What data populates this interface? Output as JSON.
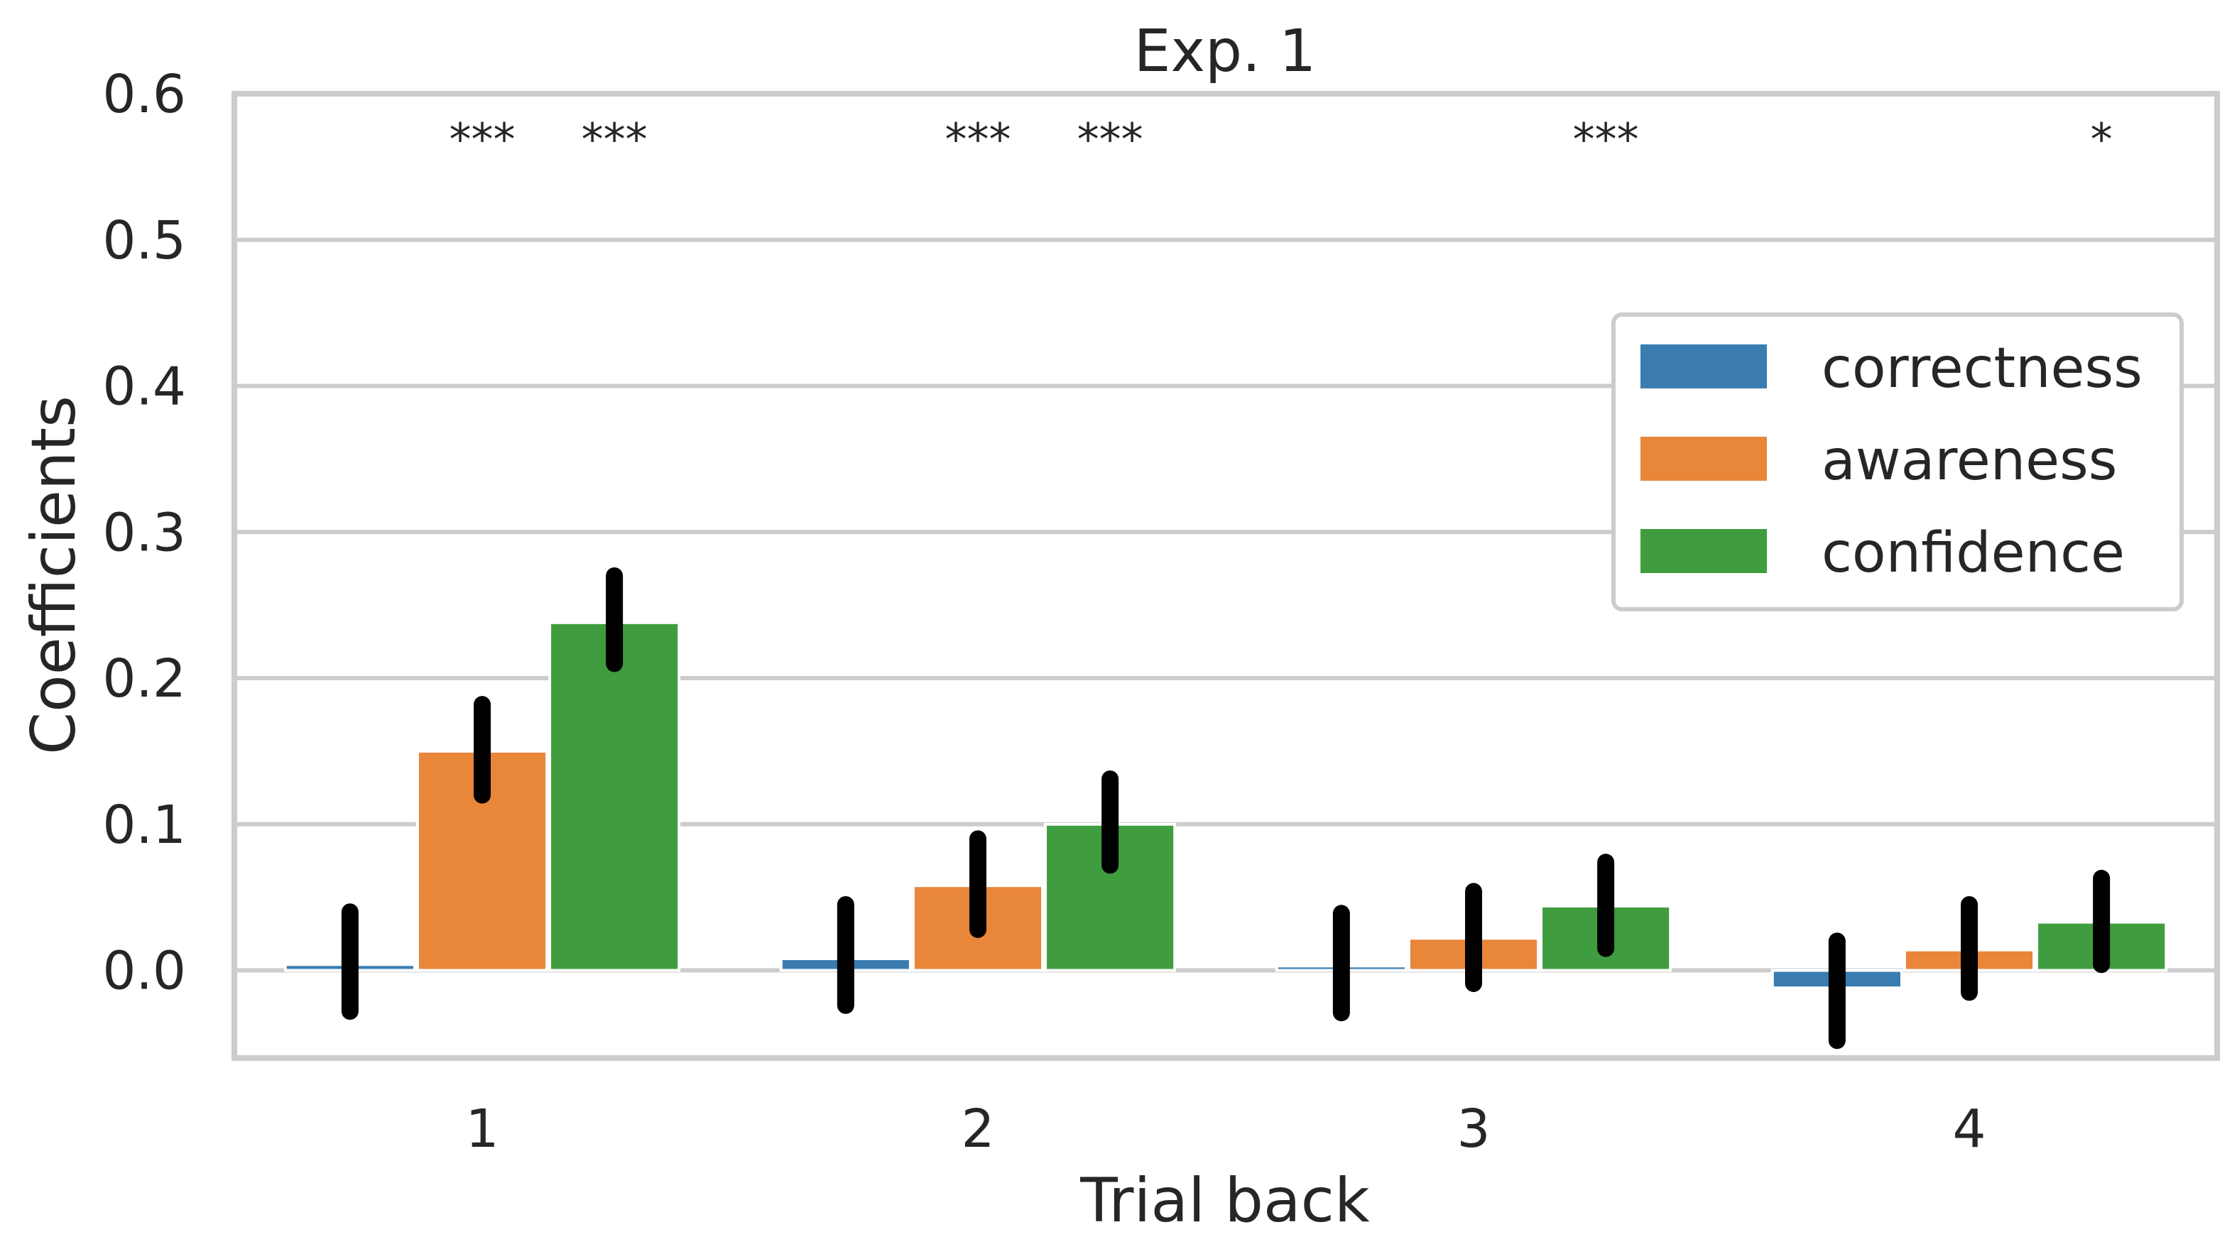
{
  "chart_data": {
    "type": "bar",
    "title": "Exp. 1",
    "xlabel": "Trial back",
    "ylabel": "Coefficients",
    "categories": [
      "1",
      "2",
      "3",
      "4"
    ],
    "ylim": [
      -0.06,
      0.6
    ],
    "yticks": [
      "0.0",
      "0.1",
      "0.2",
      "0.3",
      "0.4",
      "0.5",
      "0.6"
    ],
    "grid": "horizontal",
    "legend_position": "right",
    "series": [
      {
        "name": "correctness",
        "color": "#3a7cb0",
        "values": [
          0.004,
          0.008,
          0.003,
          -0.012
        ],
        "ci": [
          [
            -0.028,
            0.04
          ],
          [
            -0.024,
            0.045
          ],
          [
            -0.029,
            0.039
          ],
          [
            -0.048,
            0.02
          ]
        ]
      },
      {
        "name": "awareness",
        "color": "#e8863a",
        "values": [
          0.15,
          0.058,
          0.022,
          0.014
        ],
        "ci": [
          [
            0.12,
            0.182
          ],
          [
            0.028,
            0.09
          ],
          [
            -0.009,
            0.054
          ],
          [
            -0.015,
            0.045
          ]
        ]
      },
      {
        "name": "confidence",
        "color": "#3f9c3f",
        "values": [
          0.238,
          0.1,
          0.044,
          0.033
        ],
        "ci": [
          [
            0.21,
            0.27
          ],
          [
            0.072,
            0.131
          ],
          [
            0.015,
            0.074
          ],
          [
            0.004,
            0.063
          ]
        ]
      }
    ],
    "significance": [
      {
        "category": 0,
        "series": 1,
        "label": "***"
      },
      {
        "category": 0,
        "series": 2,
        "label": "***"
      },
      {
        "category": 1,
        "series": 1,
        "label": "***"
      },
      {
        "category": 1,
        "series": 2,
        "label": "***"
      },
      {
        "category": 2,
        "series": 2,
        "label": "***"
      },
      {
        "category": 3,
        "series": 2,
        "label": "*"
      }
    ]
  }
}
